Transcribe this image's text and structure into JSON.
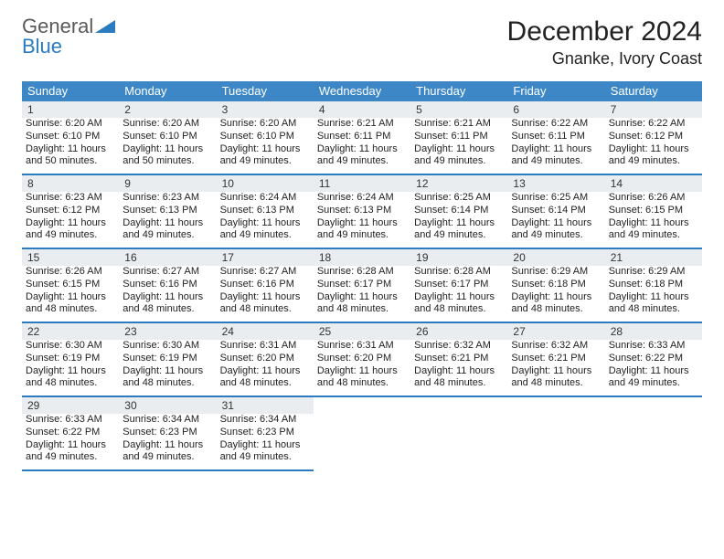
{
  "logo": {
    "text1": "General",
    "text2": "Blue"
  },
  "title": {
    "month": "December 2024",
    "location": "Gnanke, Ivory Coast"
  },
  "colors": {
    "header_bg": "#3d87c7",
    "header_text": "#ffffff",
    "rule": "#2a7bbf",
    "daynum_bg": "#e9edef",
    "body_text": "#222222",
    "logo_gray": "#5a5a5a",
    "logo_blue": "#2a7bbf"
  },
  "day_names": [
    "Sunday",
    "Monday",
    "Tuesday",
    "Wednesday",
    "Thursday",
    "Friday",
    "Saturday"
  ],
  "weeks": [
    [
      {
        "n": "1",
        "sr": "6:20 AM",
        "ss": "6:10 PM",
        "dl1": "11 hours",
        "dl2": "and 50 minutes."
      },
      {
        "n": "2",
        "sr": "6:20 AM",
        "ss": "6:10 PM",
        "dl1": "11 hours",
        "dl2": "and 50 minutes."
      },
      {
        "n": "3",
        "sr": "6:20 AM",
        "ss": "6:10 PM",
        "dl1": "11 hours",
        "dl2": "and 49 minutes."
      },
      {
        "n": "4",
        "sr": "6:21 AM",
        "ss": "6:11 PM",
        "dl1": "11 hours",
        "dl2": "and 49 minutes."
      },
      {
        "n": "5",
        "sr": "6:21 AM",
        "ss": "6:11 PM",
        "dl1": "11 hours",
        "dl2": "and 49 minutes."
      },
      {
        "n": "6",
        "sr": "6:22 AM",
        "ss": "6:11 PM",
        "dl1": "11 hours",
        "dl2": "and 49 minutes."
      },
      {
        "n": "7",
        "sr": "6:22 AM",
        "ss": "6:12 PM",
        "dl1": "11 hours",
        "dl2": "and 49 minutes."
      }
    ],
    [
      {
        "n": "8",
        "sr": "6:23 AM",
        "ss": "6:12 PM",
        "dl1": "11 hours",
        "dl2": "and 49 minutes."
      },
      {
        "n": "9",
        "sr": "6:23 AM",
        "ss": "6:13 PM",
        "dl1": "11 hours",
        "dl2": "and 49 minutes."
      },
      {
        "n": "10",
        "sr": "6:24 AM",
        "ss": "6:13 PM",
        "dl1": "11 hours",
        "dl2": "and 49 minutes."
      },
      {
        "n": "11",
        "sr": "6:24 AM",
        "ss": "6:13 PM",
        "dl1": "11 hours",
        "dl2": "and 49 minutes."
      },
      {
        "n": "12",
        "sr": "6:25 AM",
        "ss": "6:14 PM",
        "dl1": "11 hours",
        "dl2": "and 49 minutes."
      },
      {
        "n": "13",
        "sr": "6:25 AM",
        "ss": "6:14 PM",
        "dl1": "11 hours",
        "dl2": "and 49 minutes."
      },
      {
        "n": "14",
        "sr": "6:26 AM",
        "ss": "6:15 PM",
        "dl1": "11 hours",
        "dl2": "and 49 minutes."
      }
    ],
    [
      {
        "n": "15",
        "sr": "6:26 AM",
        "ss": "6:15 PM",
        "dl1": "11 hours",
        "dl2": "and 48 minutes."
      },
      {
        "n": "16",
        "sr": "6:27 AM",
        "ss": "6:16 PM",
        "dl1": "11 hours",
        "dl2": "and 48 minutes."
      },
      {
        "n": "17",
        "sr": "6:27 AM",
        "ss": "6:16 PM",
        "dl1": "11 hours",
        "dl2": "and 48 minutes."
      },
      {
        "n": "18",
        "sr": "6:28 AM",
        "ss": "6:17 PM",
        "dl1": "11 hours",
        "dl2": "and 48 minutes."
      },
      {
        "n": "19",
        "sr": "6:28 AM",
        "ss": "6:17 PM",
        "dl1": "11 hours",
        "dl2": "and 48 minutes."
      },
      {
        "n": "20",
        "sr": "6:29 AM",
        "ss": "6:18 PM",
        "dl1": "11 hours",
        "dl2": "and 48 minutes."
      },
      {
        "n": "21",
        "sr": "6:29 AM",
        "ss": "6:18 PM",
        "dl1": "11 hours",
        "dl2": "and 48 minutes."
      }
    ],
    [
      {
        "n": "22",
        "sr": "6:30 AM",
        "ss": "6:19 PM",
        "dl1": "11 hours",
        "dl2": "and 48 minutes."
      },
      {
        "n": "23",
        "sr": "6:30 AM",
        "ss": "6:19 PM",
        "dl1": "11 hours",
        "dl2": "and 48 minutes."
      },
      {
        "n": "24",
        "sr": "6:31 AM",
        "ss": "6:20 PM",
        "dl1": "11 hours",
        "dl2": "and 48 minutes."
      },
      {
        "n": "25",
        "sr": "6:31 AM",
        "ss": "6:20 PM",
        "dl1": "11 hours",
        "dl2": "and 48 minutes."
      },
      {
        "n": "26",
        "sr": "6:32 AM",
        "ss": "6:21 PM",
        "dl1": "11 hours",
        "dl2": "and 48 minutes."
      },
      {
        "n": "27",
        "sr": "6:32 AM",
        "ss": "6:21 PM",
        "dl1": "11 hours",
        "dl2": "and 48 minutes."
      },
      {
        "n": "28",
        "sr": "6:33 AM",
        "ss": "6:22 PM",
        "dl1": "11 hours",
        "dl2": "and 49 minutes."
      }
    ],
    [
      {
        "n": "29",
        "sr": "6:33 AM",
        "ss": "6:22 PM",
        "dl1": "11 hours",
        "dl2": "and 49 minutes."
      },
      {
        "n": "30",
        "sr": "6:34 AM",
        "ss": "6:23 PM",
        "dl1": "11 hours",
        "dl2": "and 49 minutes."
      },
      {
        "n": "31",
        "sr": "6:34 AM",
        "ss": "6:23 PM",
        "dl1": "11 hours",
        "dl2": "and 49 minutes."
      },
      null,
      null,
      null,
      null
    ]
  ],
  "labels": {
    "sunrise": "Sunrise:",
    "sunset": "Sunset:",
    "daylight": "Daylight:"
  }
}
